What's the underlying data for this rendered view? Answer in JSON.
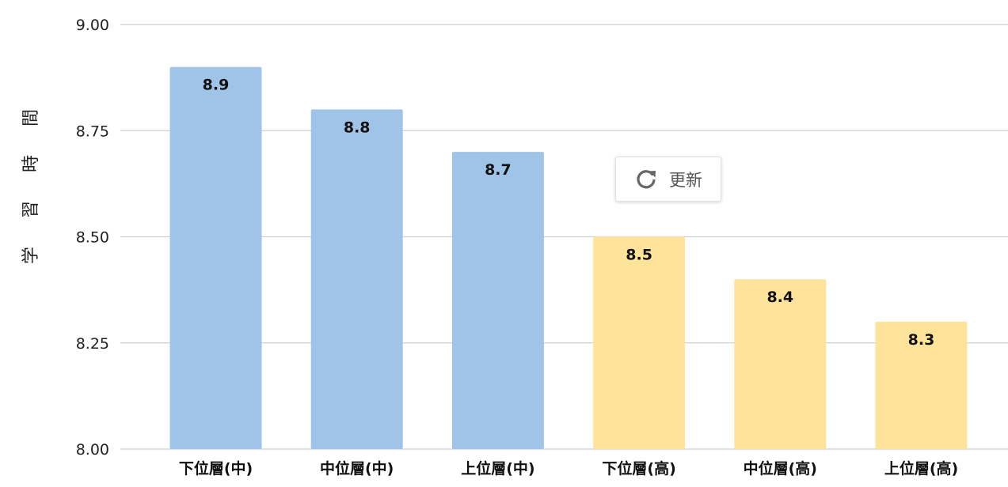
{
  "chart_data": {
    "type": "bar",
    "title": "",
    "xlabel": "",
    "ylabel": "学習時間",
    "ylim": [
      8.0,
      9.0
    ],
    "yticks": [
      "8.00",
      "8.25",
      "8.50",
      "8.75",
      "9.00"
    ],
    "grid": true,
    "categories": [
      "下位層(中)",
      "中位層(中)",
      "上位層(中)",
      "下位層(高)",
      "中位層(高)",
      "上位層(高)"
    ],
    "values": [
      8.9,
      8.8,
      8.7,
      8.5,
      8.4,
      8.3
    ],
    "value_labels": [
      "8.9",
      "8.8",
      "8.7",
      "8.5",
      "8.4",
      "8.3"
    ],
    "colors": [
      "#a0c4e8",
      "#a0c4e8",
      "#a0c4e8",
      "#fee39a",
      "#fee39a",
      "#fee39a"
    ]
  },
  "refresh_button": {
    "label": "更新",
    "icon": "refresh-icon"
  }
}
